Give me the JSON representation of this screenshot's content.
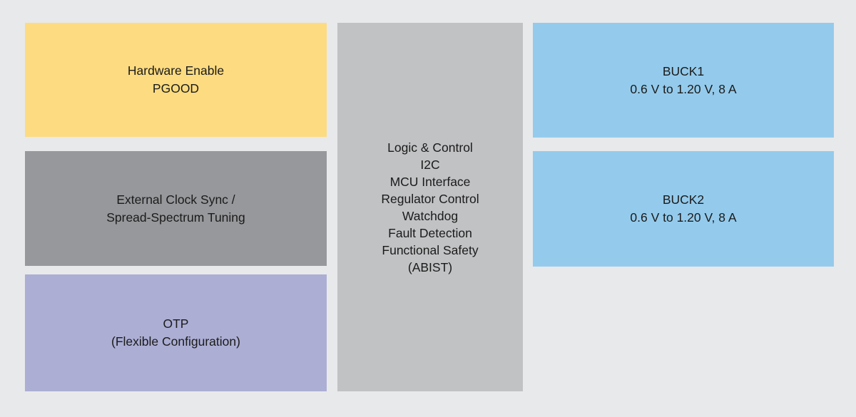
{
  "diagram": {
    "background_color": "#E8E9EB",
    "text_color": "#1B1B1B",
    "blocks": {
      "hardware_enable": {
        "color": "#FDDB80",
        "lines": [
          "Hardware Enable",
          "PGOOD"
        ]
      },
      "external_clock_sync": {
        "color": "#97989B",
        "lines": [
          "External Clock Sync /",
          "Spread-Spectrum Tuning"
        ]
      },
      "otp": {
        "color": "#ACAED4",
        "lines": [
          "OTP",
          "(Flexible Configuration)"
        ]
      },
      "logic_control": {
        "color": "#C1C2C4",
        "lines": [
          "Logic & Control",
          "I2C",
          "MCU Interface",
          "Regulator Control",
          "Watchdog",
          "Fault Detection",
          "Functional Safety",
          "(ABIST)"
        ]
      },
      "buck1": {
        "color": "#94CBEC",
        "lines": [
          "BUCK1",
          "0.6 V to 1.20 V, 8 A"
        ]
      },
      "buck2": {
        "color": "#94CBEC",
        "lines": [
          "BUCK2",
          "0.6 V to 1.20 V, 8 A"
        ]
      }
    }
  }
}
